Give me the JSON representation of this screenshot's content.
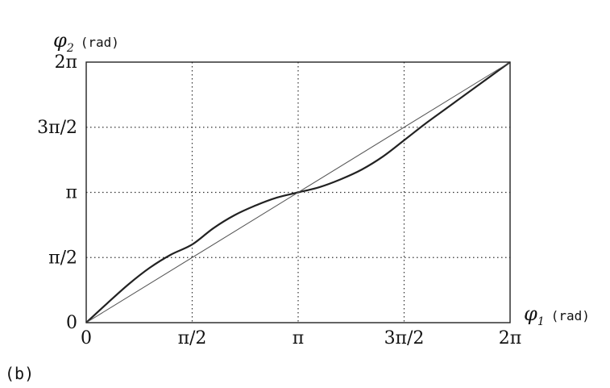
{
  "panel_label": "(b)",
  "chart_data": {
    "type": "line",
    "x_axis": {
      "symbol": "φ",
      "subscript": "1",
      "unit": "(rad)"
    },
    "y_axis": {
      "symbol": "φ",
      "subscript": "2",
      "unit": "(rad)"
    },
    "xlim": [
      0,
      6.2832
    ],
    "ylim": [
      0,
      6.2832
    ],
    "xticks": [
      {
        "value": 0,
        "label": "0"
      },
      {
        "value": 1.5708,
        "label": "π/2"
      },
      {
        "value": 3.1416,
        "label": "π"
      },
      {
        "value": 4.7124,
        "label": "3π/2"
      },
      {
        "value": 6.2832,
        "label": "2π"
      }
    ],
    "yticks": [
      {
        "value": 0,
        "label": "0"
      },
      {
        "value": 1.5708,
        "label": "π/2"
      },
      {
        "value": 3.1416,
        "label": "π"
      },
      {
        "value": 4.7124,
        "label": "3π/2"
      },
      {
        "value": 6.2832,
        "label": "2π"
      }
    ],
    "grid": "dotted",
    "series": [
      {
        "style": "thick",
        "color": "#222222",
        "x": [
          0,
          0.3142,
          0.6283,
          0.9425,
          1.2566,
          1.5708,
          1.885,
          2.1991,
          2.5133,
          2.8274,
          3.1416,
          3.4558,
          3.7699,
          4.0841,
          4.3982,
          4.7124,
          5.0265,
          5.3407,
          5.6549,
          5.969,
          6.2832
        ],
        "y": [
          0,
          0.4712,
          0.9268,
          1.3247,
          1.6415,
          1.885,
          2.2777,
          2.5918,
          2.8274,
          3.0159,
          3.1416,
          3.2673,
          3.4558,
          3.6914,
          4.0055,
          4.3982,
          4.7975,
          5.169,
          5.5418,
          5.9124,
          6.2832
        ]
      },
      {
        "style": "thin",
        "color": "#555555",
        "x": [
          0,
          6.2832
        ],
        "y": [
          0,
          6.2832
        ]
      }
    ]
  }
}
